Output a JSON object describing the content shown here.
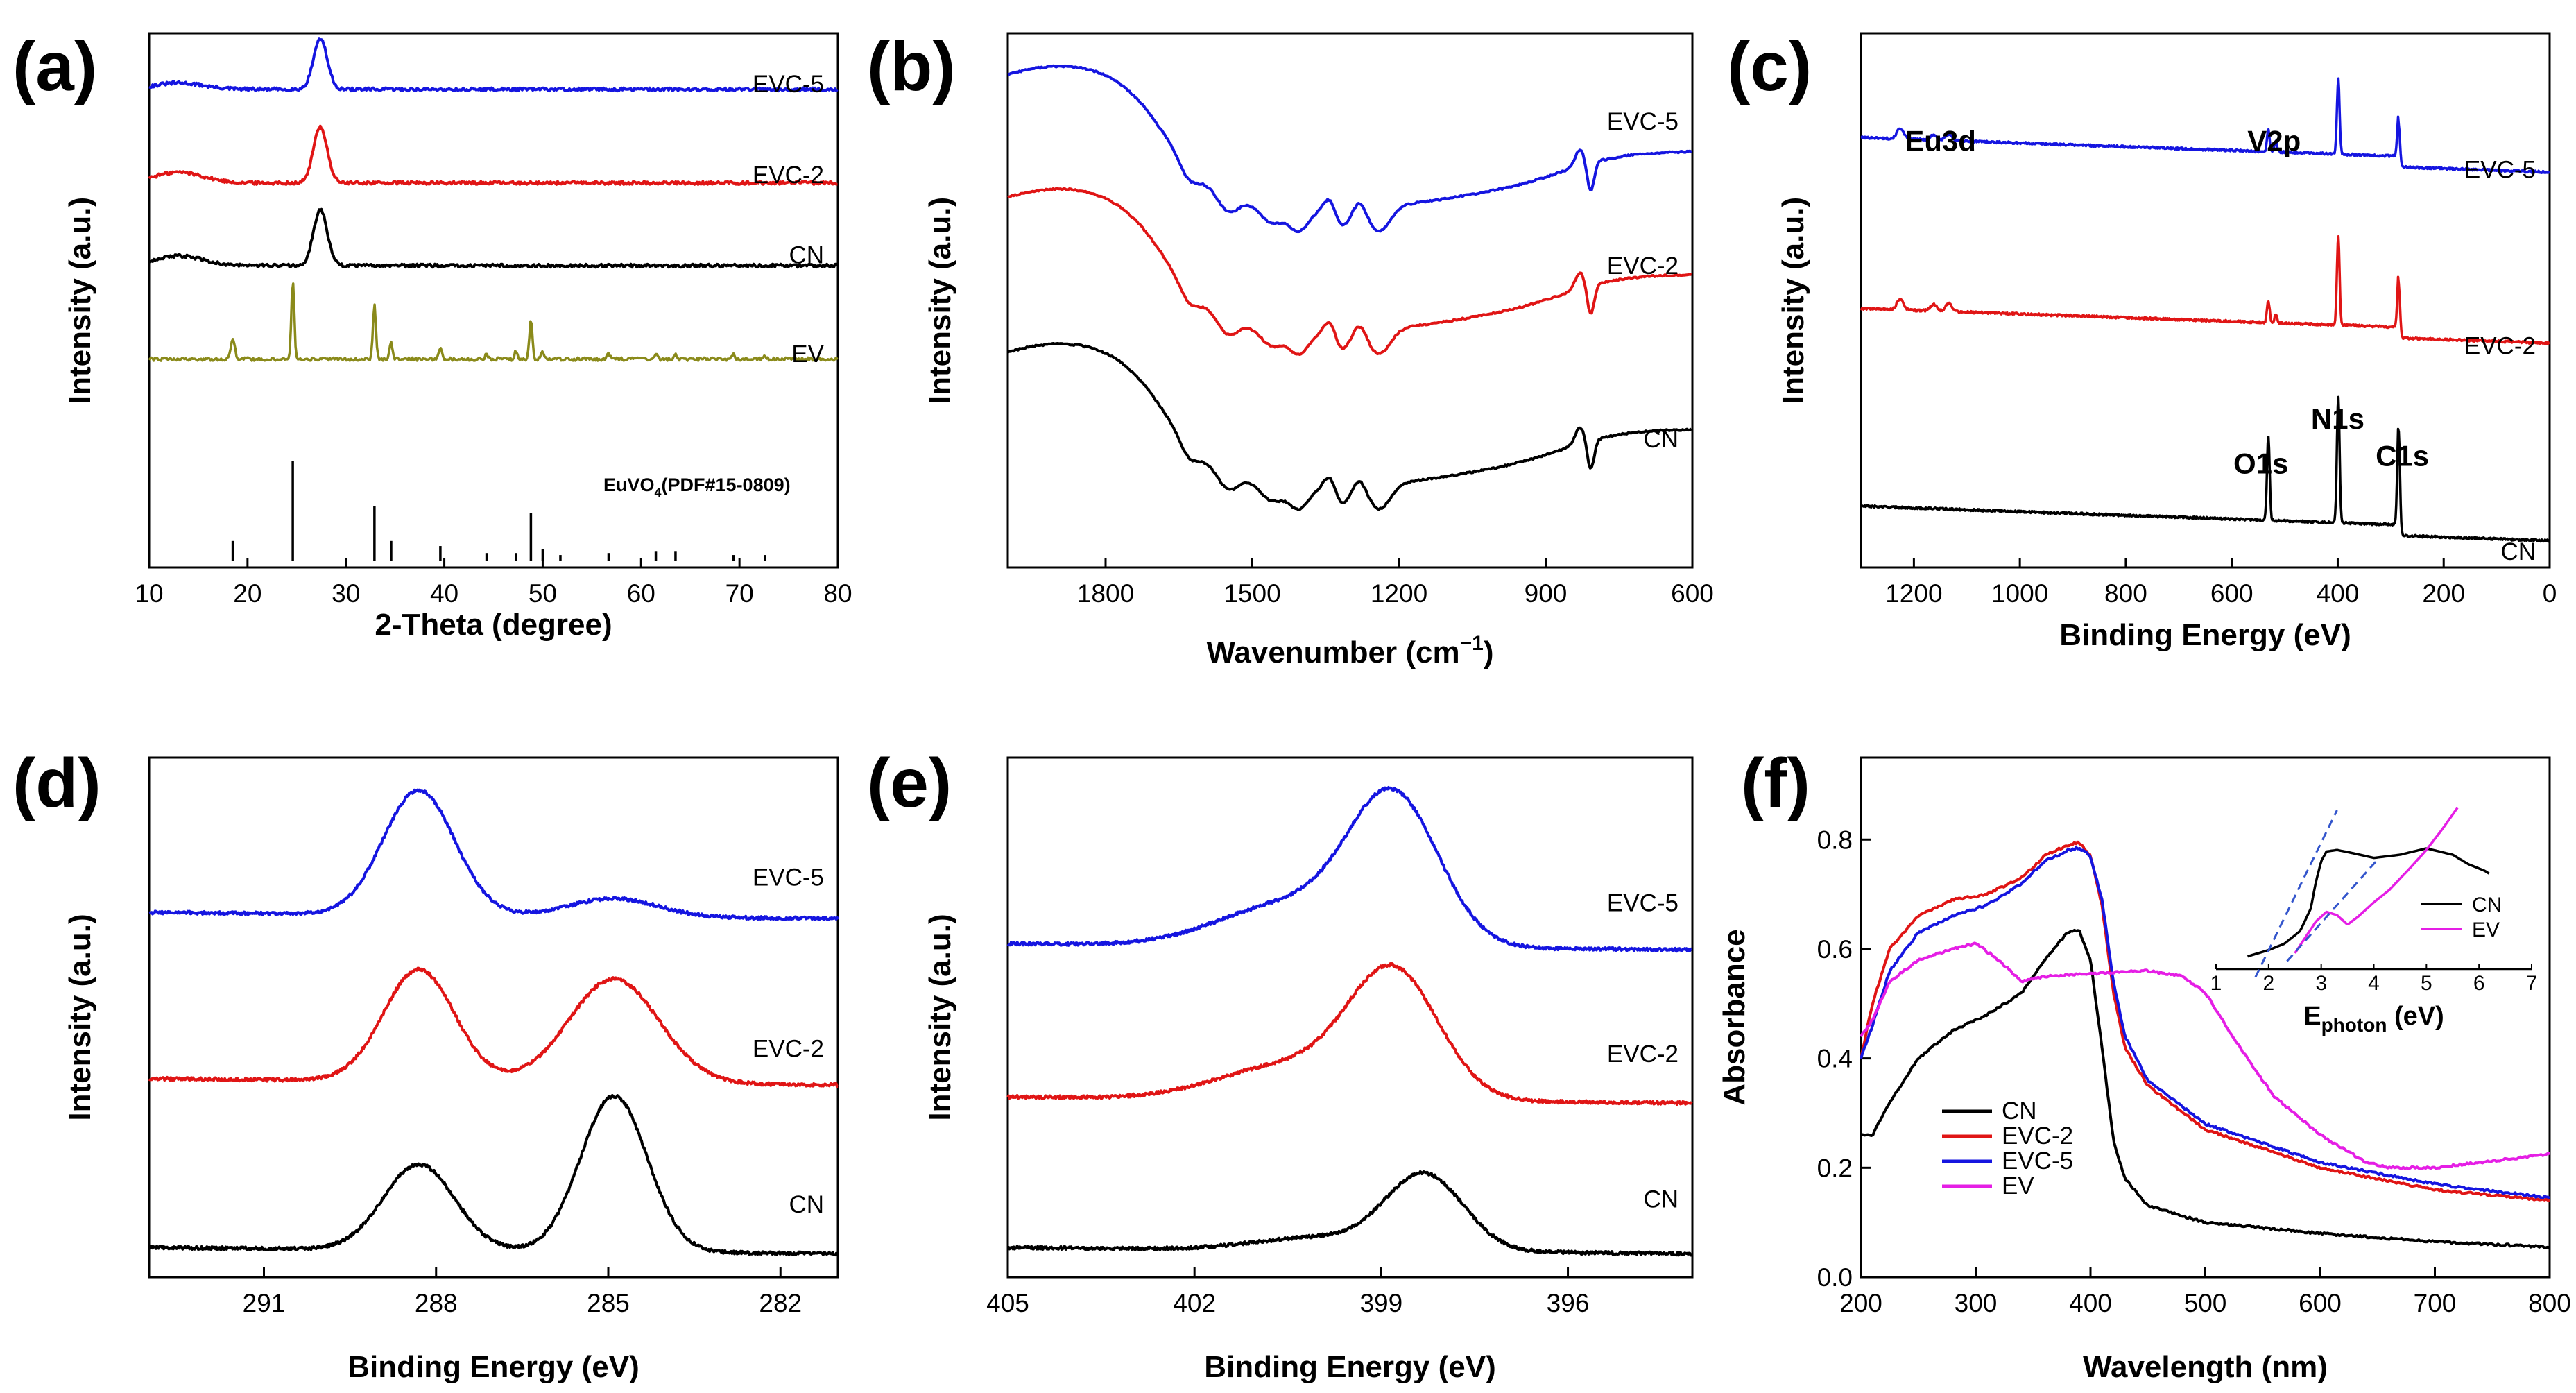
{
  "figure": {
    "panels": [
      "(a)",
      "(b)",
      "(c)",
      "(d)",
      "(e)",
      "(f)"
    ]
  },
  "chart_data": [
    {
      "id": "a",
      "label": "(a)",
      "type": "line",
      "xlabel": "2-Theta (degree)",
      "ylabel": "Intensity (a.u.)",
      "xlim": [
        10,
        80
      ],
      "xticks": [
        10,
        20,
        30,
        40,
        50,
        60,
        70,
        80
      ],
      "colors": {
        "EVC-5": "#1515e0",
        "EVC-2": "#e01515",
        "CN": "#000000",
        "EV": "#8a8a1a",
        "ref": "#000000"
      },
      "series": [
        {
          "name": "EVC-5",
          "baseline": 0.895,
          "peaks": [
            [
              27.4,
              0.095,
              0.7
            ]
          ],
          "hump": [
            13,
            0.012
          ]
        },
        {
          "name": "EVC-2",
          "baseline": 0.72,
          "peaks": [
            [
              27.4,
              0.105,
              0.7
            ]
          ],
          "hump": [
            13,
            0.02
          ]
        },
        {
          "name": "CN",
          "baseline": 0.565,
          "peaks": [
            [
              27.4,
              0.105,
              0.7
            ]
          ],
          "hump": [
            13,
            0.018
          ]
        },
        {
          "name": "EV",
          "baseline": 0.39,
          "peaks": [
            [
              18.5,
              0.04,
              0.2
            ],
            [
              24.6,
              0.145,
              0.15
            ],
            [
              32.9,
              0.1,
              0.15
            ],
            [
              34.6,
              0.03,
              0.15
            ],
            [
              39.6,
              0.022,
              0.15
            ],
            [
              44.3,
              0.01,
              0.15
            ],
            [
              47.3,
              0.015,
              0.15
            ],
            [
              48.8,
              0.075,
              0.15
            ],
            [
              50.0,
              0.015,
              0.15
            ],
            [
              56.7,
              0.01,
              0.15
            ],
            [
              61.5,
              0.012,
              0.15
            ],
            [
              63.5,
              0.01,
              0.15
            ],
            [
              69.4,
              0.008,
              0.15
            ],
            [
              72.6,
              0.006,
              0.15
            ]
          ]
        }
      ],
      "reference": {
        "label": "EuVO",
        "sub": "4",
        "suffix": "(PDF#15-0809)",
        "lines": [
          [
            18.5,
            0.2
          ],
          [
            24.6,
            1.0
          ],
          [
            32.9,
            0.55
          ],
          [
            34.6,
            0.2
          ],
          [
            39.6,
            0.15
          ],
          [
            44.3,
            0.08
          ],
          [
            47.3,
            0.08
          ],
          [
            48.8,
            0.48
          ],
          [
            50.0,
            0.12
          ],
          [
            51.8,
            0.06
          ],
          [
            56.7,
            0.08
          ],
          [
            61.5,
            0.1
          ],
          [
            63.5,
            0.1
          ],
          [
            69.4,
            0.06
          ],
          [
            72.6,
            0.06
          ]
        ]
      }
    },
    {
      "id": "b",
      "label": "(b)",
      "type": "line",
      "xlabel": "Wavenumber (cm",
      "xlabel_sup": "−1",
      "xlabel_end": ")",
      "ylabel": "Intensity (a.u.)",
      "xlim": [
        2000,
        600
      ],
      "xticks": [
        1800,
        1500,
        1200,
        900,
        600
      ],
      "colors": {
        "EVC-5": "#1515e0",
        "EVC-2": "#e01515",
        "CN": "#000000"
      },
      "series": [
        {
          "name": "EVC-5",
          "offset": 0.52
        },
        {
          "name": "EVC-2",
          "offset": 0.29
        },
        {
          "name": "CN",
          "offset": 0.0
        }
      ]
    },
    {
      "id": "c",
      "label": "(c)",
      "type": "line",
      "xlabel": "Binding Energy (eV)",
      "ylabel": "Intensity (a.u.)",
      "xlim": [
        1300,
        0
      ],
      "xticks": [
        1200,
        1000,
        800,
        600,
        400,
        200,
        0
      ],
      "colors": {
        "EVC-5": "#1515e0",
        "EVC-2": "#e01515",
        "CN": "#000000"
      },
      "annotations": [
        {
          "text": "Eu3d",
          "x": 1150,
          "y": 0.78
        },
        {
          "text": "V2p",
          "x": 520,
          "y": 0.78
        },
        {
          "text": "O1s",
          "x": 545,
          "y": 0.176
        },
        {
          "text": "N1s",
          "x": 400,
          "y": 0.26
        },
        {
          "text": "C1s",
          "x": 278,
          "y": 0.19
        }
      ],
      "series": [
        {
          "name": "EVC-5",
          "offset": 0.74,
          "peaks": [
            [
              1134,
              0.012
            ],
            [
              1163,
              0.01
            ],
            [
              1226,
              0.02
            ],
            [
              517,
              0.02
            ],
            [
              531,
              0.04
            ],
            [
              399,
              0.14
            ],
            [
              285,
              0.08
            ]
          ]
        },
        {
          "name": "EVC-2",
          "offset": 0.42,
          "peaks": [
            [
              1134,
              0.015
            ],
            [
              1163,
              0.012
            ],
            [
              1226,
              0.02
            ],
            [
              517,
              0.015
            ],
            [
              531,
              0.04
            ],
            [
              399,
              0.165
            ],
            [
              285,
              0.1
            ]
          ]
        },
        {
          "name": "CN",
          "offset": 0.05,
          "peaks": [
            [
              531,
              0.155
            ],
            [
              399,
              0.235
            ],
            [
              285,
              0.195
            ]
          ]
        }
      ]
    },
    {
      "id": "d",
      "label": "(d)",
      "type": "line",
      "xlabel": "Binding Energy (eV)",
      "ylabel": "Intensity (a.u.)",
      "xlim": [
        293,
        281
      ],
      "xticks": [
        291,
        288,
        285,
        282
      ],
      "colors": {
        "EVC-5": "#1515e0",
        "EVC-2": "#e01515",
        "CN": "#000000"
      },
      "series": [
        {
          "name": "EVC-5",
          "offset": 0.69,
          "peaks": [
            [
              288.3,
              0.24,
              0.62
            ],
            [
              284.9,
              0.035,
              0.75
            ]
          ]
        },
        {
          "name": "EVC-2",
          "offset": 0.37,
          "peaks": [
            [
              288.3,
              0.215,
              0.62
            ],
            [
              284.9,
              0.2,
              0.78
            ]
          ]
        },
        {
          "name": "CN",
          "offset": 0.045,
          "peaks": [
            [
              288.3,
              0.165,
              0.62
            ],
            [
              284.9,
              0.3,
              0.58
            ]
          ]
        }
      ]
    },
    {
      "id": "e",
      "label": "(e)",
      "type": "line",
      "xlabel": "Binding Energy (eV)",
      "ylabel": "Intensity (a.u.)",
      "xlim": [
        405,
        394
      ],
      "xticks": [
        405,
        402,
        399,
        396
      ],
      "colors": {
        "EVC-5": "#1515e0",
        "EVC-2": "#e01515",
        "CN": "#000000"
      },
      "series": [
        {
          "name": "EVC-5",
          "offset": 0.63,
          "peaks": [
            [
              398.8,
              0.28,
              0.72
            ],
            [
              400.5,
              0.08,
              1.1
            ]
          ]
        },
        {
          "name": "EVC-2",
          "offset": 0.335,
          "peaks": [
            [
              398.8,
              0.24,
              0.72
            ],
            [
              400.5,
              0.065,
              1.1
            ]
          ]
        },
        {
          "name": "CN",
          "offset": 0.045,
          "peaks": [
            [
              398.3,
              0.145,
              0.62
            ],
            [
              400.0,
              0.025,
              1.0
            ]
          ]
        }
      ]
    },
    {
      "id": "f",
      "label": "(f)",
      "type": "line",
      "xlabel": "Wavelength (nm)",
      "ylabel": "Absorbance",
      "xlim": [
        200,
        800
      ],
      "ylim": [
        0,
        0.95
      ],
      "xticks": [
        200,
        300,
        400,
        500,
        600,
        700,
        800
      ],
      "yticks": [
        0.0,
        0.2,
        0.4,
        0.6,
        0.8
      ],
      "colors": {
        "CN": "#000000",
        "EVC-2": "#e01515",
        "EVC-5": "#1515e0",
        "EV": "#e51ee5"
      },
      "legend": [
        "CN",
        "EVC-2",
        "EVC-5",
        "EV"
      ],
      "series": [
        {
          "name": "CN",
          "x": [
            200,
            210,
            225,
            250,
            280,
            310,
            340,
            360,
            380,
            390,
            400,
            410,
            420,
            430,
            450,
            500,
            600,
            700,
            800
          ],
          "y": [
            0.26,
            0.26,
            0.32,
            0.4,
            0.45,
            0.48,
            0.52,
            0.58,
            0.63,
            0.635,
            0.58,
            0.42,
            0.25,
            0.18,
            0.13,
            0.1,
            0.08,
            0.065,
            0.055
          ]
        },
        {
          "name": "EVC-2",
          "x": [
            200,
            210,
            225,
            250,
            280,
            310,
            340,
            360,
            380,
            390,
            400,
            410,
            420,
            430,
            450,
            500,
            600,
            700,
            800
          ],
          "y": [
            0.4,
            0.5,
            0.6,
            0.66,
            0.69,
            0.7,
            0.73,
            0.77,
            0.79,
            0.795,
            0.77,
            0.68,
            0.52,
            0.42,
            0.35,
            0.27,
            0.2,
            0.16,
            0.14
          ]
        },
        {
          "name": "EVC-5",
          "x": [
            200,
            210,
            225,
            250,
            280,
            310,
            340,
            360,
            380,
            390,
            400,
            410,
            420,
            430,
            450,
            500,
            600,
            700,
            800
          ],
          "y": [
            0.4,
            0.46,
            0.56,
            0.63,
            0.66,
            0.68,
            0.72,
            0.76,
            0.78,
            0.785,
            0.77,
            0.69,
            0.54,
            0.44,
            0.36,
            0.28,
            0.21,
            0.17,
            0.145
          ]
        },
        {
          "name": "EV",
          "x": [
            200,
            210,
            225,
            250,
            280,
            300,
            320,
            340,
            360,
            400,
            450,
            480,
            500,
            530,
            560,
            600,
            640,
            660,
            700,
            800
          ],
          "y": [
            0.44,
            0.47,
            0.54,
            0.58,
            0.6,
            0.61,
            0.58,
            0.54,
            0.55,
            0.555,
            0.56,
            0.55,
            0.52,
            0.42,
            0.33,
            0.26,
            0.21,
            0.2,
            0.2,
            0.225
          ]
        }
      ],
      "inset": {
        "xlabel": "E",
        "xlabel_sub": "photon",
        "xlabel_end": " (eV)",
        "xlim": [
          1,
          7
        ],
        "xticks": [
          1,
          2,
          3,
          4,
          5,
          6,
          7
        ],
        "legend": [
          "CN",
          "EV"
        ],
        "series": [
          {
            "name": "CN",
            "x": [
              1.6,
              2.0,
              2.3,
              2.6,
              2.8,
              2.9,
              3.0,
              3.1,
              3.3,
              3.6,
              4.0,
              4.5,
              5.0,
              5.5,
              5.8,
              6.1,
              6.2
            ],
            "y": [
              0.08,
              0.12,
              0.16,
              0.24,
              0.38,
              0.55,
              0.68,
              0.74,
              0.75,
              0.73,
              0.7,
              0.72,
              0.76,
              0.72,
              0.66,
              0.62,
              0.6
            ]
          },
          {
            "name": "EV",
            "x": [
              2.5,
              2.7,
              2.9,
              3.1,
              3.3,
              3.5,
              3.7,
              4.0,
              4.3,
              4.7,
              5.0,
              5.3,
              5.6
            ],
            "y": [
              0.1,
              0.2,
              0.3,
              0.36,
              0.34,
              0.28,
              0.33,
              0.42,
              0.5,
              0.64,
              0.75,
              0.88,
              1.02
            ]
          }
        ]
      }
    }
  ]
}
